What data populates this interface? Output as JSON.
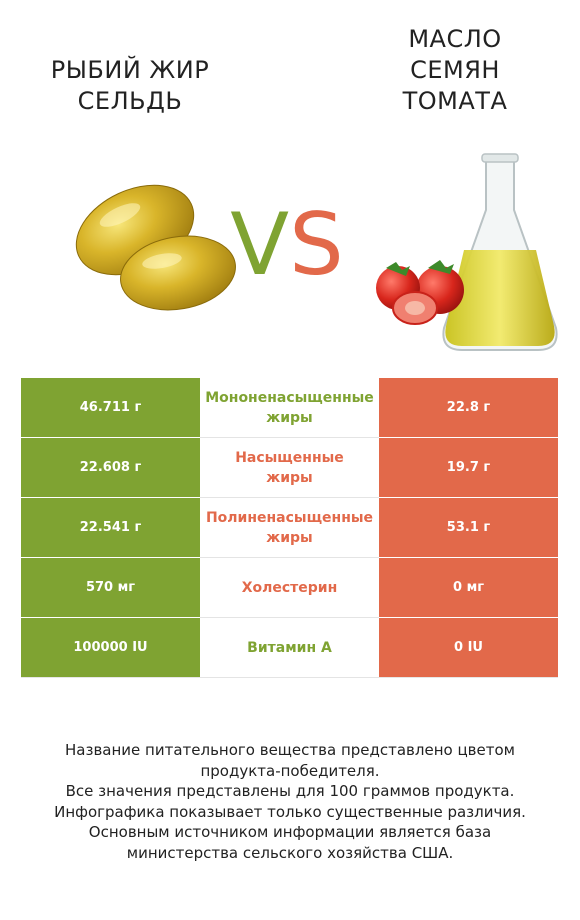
{
  "products": {
    "left": {
      "name": "Рыбий жир\nсельдь",
      "color": "#7fa332"
    },
    "right": {
      "name": "Масло\nсемян\nтомата",
      "color": "#e2694a"
    }
  },
  "vs": {
    "v": "V",
    "s": "S"
  },
  "rows": [
    {
      "left": "46.711 г",
      "label": "Мононенасыщенные\nжиры",
      "right": "22.8 г",
      "winner": "left"
    },
    {
      "left": "22.608 г",
      "label": "Насыщенные\nжиры",
      "right": "19.7 г",
      "winner": "right"
    },
    {
      "left": "22.541 г",
      "label": "Полиненасыщенные\nжиры",
      "right": "53.1 г",
      "winner": "right"
    },
    {
      "left": "570 мг",
      "label": "Холестерин",
      "right": "0 мг",
      "winner": "right"
    },
    {
      "left": "100000 IU",
      "label": "Витамин A",
      "right": "0 IU",
      "winner": "left"
    }
  ],
  "footnote": [
    "Название питательного вещества представлено цветом",
    "продукта-победителя.",
    "Все значения представлены для 100 граммов продукта.",
    "Инфографика показывает только существенные различия.",
    "Основным источником информации является база",
    "министерства сельского хозяйства США."
  ]
}
